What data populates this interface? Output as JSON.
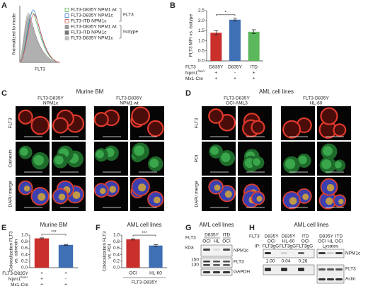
{
  "panels": {
    "A": {
      "letter": "A",
      "y_label": "Normalized to mode",
      "x_label": "FLT3",
      "legend": [
        {
          "name": "FLT3-D835Y NPM1 wt",
          "color": "#5cb85c"
        },
        {
          "name": "FLT3-D835Y NPM1c",
          "color": "#3a7bd5"
        },
        {
          "name": "FLT3-ITD NPM1c",
          "color": "#d9534f"
        },
        {
          "name": "FLT3-D835Y NPM1 wt",
          "color": "#9a9a9a"
        },
        {
          "name": "FLT3-ITD NPM1c",
          "color": "#777777"
        },
        {
          "name": "FLT3-D835Y NPM1c",
          "color": "#bdbdbd"
        }
      ],
      "groups": [
        "FLT3",
        "Isotype"
      ]
    },
    "B": {
      "letter": "B",
      "y_label": "FLT3 MFI vs. isotype",
      "row_label": "FLT3",
      "categories": [
        "D835Y",
        "D835Y",
        "ITD"
      ],
      "values": [
        1.4,
        2.05,
        1.45
      ],
      "errors": [
        0.1,
        0.07,
        0.1
      ],
      "colors": [
        "#c9302c",
        "#3f6fb5",
        "#5cb85c"
      ],
      "ylim": [
        0,
        2.5
      ],
      "yticks": [
        {
          "value": 0,
          "label": "0.0"
        },
        {
          "value": 0.5,
          "label": "0.5"
        },
        {
          "value": 1,
          "label": "1.0"
        },
        {
          "value": 1.5,
          "label": "1.5"
        },
        {
          "value": 2,
          "label": "2.0"
        },
        {
          "value": 2.5,
          "label": "2.5"
        }
      ],
      "significance": "*",
      "rows": [
        {
          "label": "Npm1",
          "sup": "flox/+",
          "marks": [
            "+",
            "-",
            "+"
          ]
        },
        {
          "label": "Mx1-Cre",
          "marks": [
            "+",
            "+",
            "+"
          ]
        }
      ]
    },
    "C": {
      "letter": "C",
      "title": "Murine BM",
      "groups": [
        [
          "FLT3-D835Y",
          "NPM1c"
        ],
        [
          "FLT3-D835Y",
          "NPM1 wt"
        ]
      ],
      "rows": [
        "FLT3",
        "Calnexin",
        "DAPI/ merge"
      ]
    },
    "D": {
      "letter": "D",
      "title": "AML cell lines",
      "groups": [
        [
          "FLT3-D835Y",
          "OCI-AML3"
        ],
        [
          "FLT3-D835Y",
          "HL-60"
        ]
      ],
      "rows": [
        "FLT3",
        "PDI",
        "DAPI/ merge"
      ]
    },
    "E": {
      "letter": "E",
      "title": "Murine BM",
      "y_label": [
        "Colocalization FLT3",
        "vs. calnexin"
      ],
      "values": [
        0.9,
        0.7
      ],
      "errors": [
        0.015,
        0.015
      ],
      "colors": [
        "#c9302c",
        "#3f6fb5"
      ],
      "ylim": [
        0,
        1
      ],
      "yticks": [
        {
          "value": 0,
          "label": "0.0"
        },
        {
          "value": 0.2,
          "label": "0.2"
        },
        {
          "value": 0.4,
          "label": "0.4"
        },
        {
          "value": 0.6,
          "label": "0.6"
        },
        {
          "value": 0.8,
          "label": "0.8"
        },
        {
          "value": 1,
          "label": "1.0"
        }
      ],
      "significance": "***",
      "rows": [
        {
          "label": "FLT3-D835Y",
          "marks": [
            "+",
            "+"
          ]
        },
        {
          "label": "Npm1",
          "sup": "flox/+",
          "marks": [
            "+",
            "-"
          ]
        },
        {
          "label": "Mx1-Cre",
          "marks": [
            "+",
            "+"
          ]
        }
      ]
    },
    "F": {
      "letter": "F",
      "title": "AML cell lines",
      "y_label": [
        "Colocalization FLT3",
        "vs. PDI"
      ],
      "categories": [
        "OCI",
        "HL-60"
      ],
      "values": [
        0.87,
        0.68
      ],
      "errors": [
        0.02,
        0.03
      ],
      "colors": [
        "#c9302c",
        "#3f6fb5"
      ],
      "ylim": [
        0,
        1
      ],
      "yticks": [
        {
          "value": 0,
          "label": "0.0"
        },
        {
          "value": 0.2,
          "label": "0.2"
        },
        {
          "value": 0.4,
          "label": "0.4"
        },
        {
          "value": 0.6,
          "label": "0.6"
        },
        {
          "value": 0.8,
          "label": "0.8"
        },
        {
          "value": 1,
          "label": "1.0"
        }
      ],
      "significance": "***",
      "group": "FLT3-D835Y"
    },
    "G": {
      "letter": "G",
      "title": "AML cell lines",
      "header": "FLT3",
      "groups": [
        "D835Y",
        "ITD"
      ],
      "lanes": [
        "OCI",
        "HL",
        "OCI"
      ],
      "kda_label": "kDa",
      "markers": [
        "150",
        "130"
      ],
      "bands": [
        "NPM1c",
        "FLT3",
        "GAPDH"
      ]
    },
    "H": {
      "letter": "H",
      "title": "AML cell lines",
      "header": "FLT3",
      "groups": [
        "D835Y",
        "D835Y",
        "ITD",
        "D835Y",
        "ITD"
      ],
      "cells": [
        "OCI",
        "HL-60",
        "OCI",
        "OCI",
        "HL",
        "OCI"
      ],
      "ip_label": "IP:",
      "ip": [
        "FLT3",
        "IgG",
        "FLT3",
        "IgG",
        "FLT3",
        "IgG"
      ],
      "lysates": "Lysates",
      "quant": [
        "1.00",
        "0.04",
        "0.26"
      ],
      "bands": [
        "NPM1c",
        "FLT3",
        "Actin"
      ]
    }
  }
}
